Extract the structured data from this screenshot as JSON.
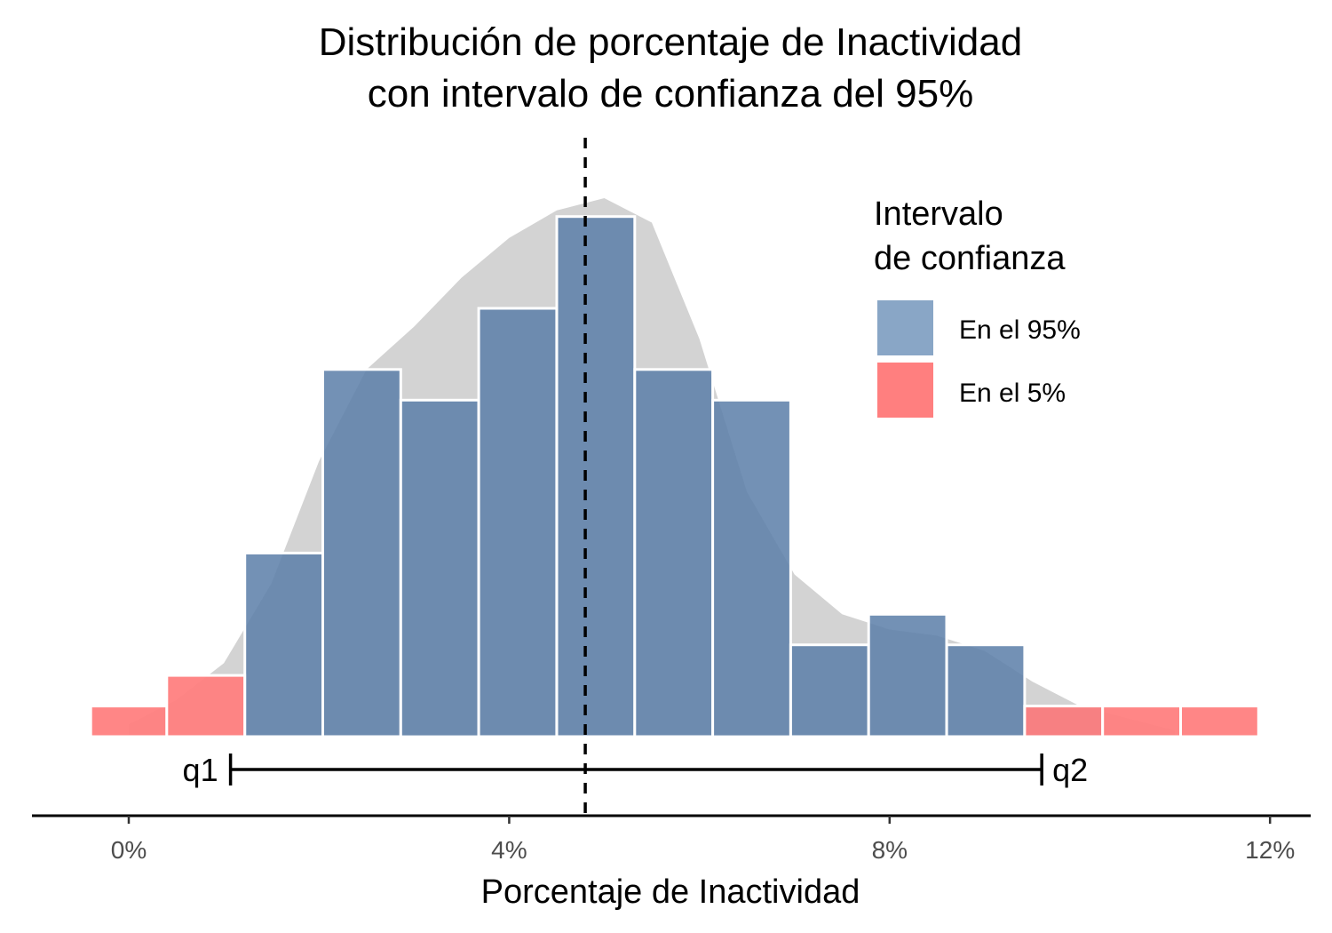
{
  "chart_data": {
    "type": "histogram",
    "title_lines": [
      "Distribución de porcentaje de Inactividad",
      "con intervalo de confianza del 95%"
    ],
    "xlabel": "Porcentaje de Inactividad",
    "ylabel": "",
    "xlim": [
      -1.0,
      12.5
    ],
    "x_ticks": [
      0,
      4,
      8,
      12
    ],
    "x_tick_labels": [
      "0%",
      "4%",
      "8%",
      "12%"
    ],
    "mean_line_x": 4.8,
    "interval": {
      "q1": 1.07,
      "q2": 9.6,
      "q1_label": "q1",
      "q2_label": "q2"
    },
    "legend": {
      "title_lines": [
        "Intervalo",
        "de confianza"
      ],
      "entries": [
        {
          "label": "En el 95%",
          "color": "#89a6c6"
        },
        {
          "label": "En el 5%",
          "color": "#ff7f7f"
        }
      ]
    },
    "series": [
      {
        "group": "En el 95%",
        "color": "#5b7ea8",
        "bins": [
          {
            "x0": 1.22,
            "x1": 2.04,
            "count": 6
          },
          {
            "x0": 2.04,
            "x1": 2.86,
            "count": 12
          },
          {
            "x0": 2.86,
            "x1": 3.68,
            "count": 11
          },
          {
            "x0": 3.68,
            "x1": 4.5,
            "count": 14
          },
          {
            "x0": 4.5,
            "x1": 5.32,
            "count": 17
          },
          {
            "x0": 5.32,
            "x1": 6.14,
            "count": 12
          },
          {
            "x0": 6.14,
            "x1": 6.96,
            "count": 11
          },
          {
            "x0": 6.96,
            "x1": 7.78,
            "count": 3
          },
          {
            "x0": 7.78,
            "x1": 8.6,
            "count": 4
          },
          {
            "x0": 8.6,
            "x1": 9.42,
            "count": 3
          },
          {
            "x0": 9.42,
            "x1": 10.24,
            "count": 1
          }
        ]
      },
      {
        "group": "En el 5%",
        "color": "#ff7f7f",
        "bins": [
          {
            "x0": -0.4,
            "x1": 0.4,
            "count": 1
          },
          {
            "x0": 0.4,
            "x1": 1.22,
            "count": 2
          },
          {
            "x0": 9.42,
            "x1": 10.24,
            "count": 1
          },
          {
            "x0": 10.24,
            "x1": 11.06,
            "count": 1
          },
          {
            "x0": 11.06,
            "x1": 11.88,
            "count": 1
          }
        ]
      }
    ],
    "density": {
      "color": "#d3d3d3",
      "points": [
        [
          0,
          0.4
        ],
        [
          0.5,
          1.2
        ],
        [
          1,
          2.4
        ],
        [
          1.5,
          5
        ],
        [
          2,
          9
        ],
        [
          2.5,
          12
        ],
        [
          3,
          13.4
        ],
        [
          3.5,
          15
        ],
        [
          4,
          16.3
        ],
        [
          4.5,
          17.2
        ],
        [
          5,
          17.6
        ],
        [
          5.5,
          16.8
        ],
        [
          6,
          13
        ],
        [
          6.5,
          8
        ],
        [
          7,
          5.3
        ],
        [
          7.5,
          4
        ],
        [
          8,
          3.5
        ],
        [
          8.5,
          3.3
        ],
        [
          9,
          2.8
        ],
        [
          9.5,
          1.8
        ],
        [
          10,
          1
        ],
        [
          10.5,
          0.6
        ],
        [
          11,
          0.2
        ]
      ]
    },
    "ylim": [
      0,
      18.5
    ]
  }
}
